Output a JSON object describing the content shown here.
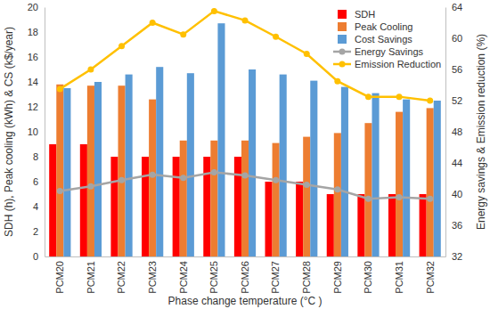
{
  "chart_data": {
    "type": "bar",
    "x_label": "Phase change temperature (°C )",
    "y_label": "SDH (h), Peak cooling (kWh) & CS (k$/year)",
    "y2_label": "Energy savings & Emission reduction (%)",
    "categories": [
      "PCM20",
      "PCM21",
      "PCM22",
      "PCM23",
      "PCM24",
      "PCM25",
      "PCM26",
      "PCM27",
      "PCM28",
      "PCM29",
      "PCM30",
      "PCM31",
      "PCM32"
    ],
    "series": [
      {
        "name": "SDH",
        "type": "bar",
        "color": "#ff0000",
        "values": [
          9,
          9,
          8,
          8,
          8,
          8,
          8,
          6,
          6,
          5,
          5,
          5,
          5
        ]
      },
      {
        "name": "Peak Cooling",
        "type": "bar",
        "color": "#ed7d31",
        "values": [
          13.8,
          13.7,
          13.7,
          12.6,
          9.3,
          9.3,
          9.3,
          9.1,
          9.6,
          9.9,
          10.7,
          11.6,
          11.9
        ]
      },
      {
        "name": "Cost Savings",
        "type": "bar",
        "color": "#5b9bd5",
        "values": [
          13.5,
          14.0,
          14.6,
          15.2,
          14.7,
          18.7,
          15.0,
          14.6,
          14.1,
          13.6,
          13.1,
          12.6,
          12.5
        ]
      },
      {
        "name": "Energy Savings",
        "type": "line",
        "axis": "y2",
        "color": "#a5a5a5",
        "marker": "circle",
        "values": [
          40.4,
          41.0,
          41.8,
          42.5,
          42.1,
          42.8,
          42.4,
          41.8,
          41.2,
          40.6,
          39.4,
          39.6,
          39.4
        ]
      },
      {
        "name": "Emission Reduction",
        "type": "line",
        "axis": "y2",
        "color": "#ffc000",
        "marker": "circle",
        "values": [
          53.5,
          56.0,
          59.0,
          62.0,
          60.5,
          63.5,
          62.3,
          60.2,
          58.0,
          54.5,
          52.5,
          52.5,
          52.0
        ]
      }
    ],
    "ylim": [
      0,
      20
    ],
    "yticks": [
      0,
      2,
      4,
      6,
      8,
      10,
      12,
      14,
      16,
      18,
      20
    ],
    "y2lim": [
      32,
      64
    ],
    "y2ticks": [
      32,
      36,
      40,
      44,
      48,
      52,
      56,
      60,
      64
    ],
    "grid": false,
    "legend": "upper right"
  }
}
